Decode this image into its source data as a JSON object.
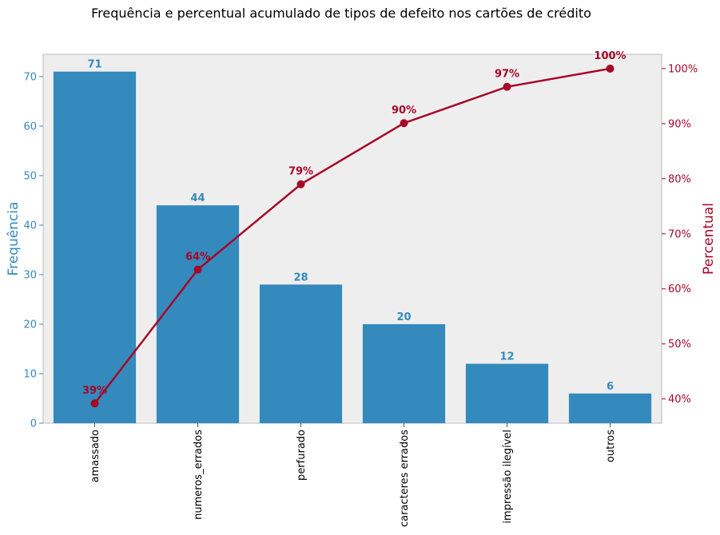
{
  "chart_data": {
    "type": "bar",
    "title": "Frequência e percentual acumulado de tipos de defeito nos cartões de crédito",
    "categories": [
      "amassado",
      "numeros_errados",
      "perfurado",
      "caracteres errados",
      "impressão ilegível",
      "outros"
    ],
    "series": [
      {
        "axis": "left",
        "type": "bar",
        "values": [
          71,
          44,
          28,
          20,
          12,
          6
        ],
        "color": "#348ABD"
      },
      {
        "axis": "right",
        "type": "line",
        "values": [
          39.2,
          63.5,
          79.0,
          90.1,
          96.7,
          100.0
        ],
        "color": "#A60628"
      }
    ],
    "bar_labels": [
      "71",
      "44",
      "28",
      "20",
      "12",
      "6"
    ],
    "pct_labels": [
      "39%",
      "64%",
      "79%",
      "90%",
      "97%",
      "100%"
    ],
    "ylabel_left": "Frequência",
    "ylabel_right": "Percentual",
    "ylim_left": [
      0,
      74.5
    ],
    "ylim_right": [
      35.6,
      102.6
    ],
    "yticks_left": [
      "0",
      "10",
      "20",
      "30",
      "40",
      "50",
      "60",
      "70"
    ],
    "yticks_right": [
      "40%",
      "50%",
      "60%",
      "70%",
      "80%",
      "90%",
      "100%"
    ],
    "grid": false,
    "plot_background": "#EEEEEE"
  }
}
